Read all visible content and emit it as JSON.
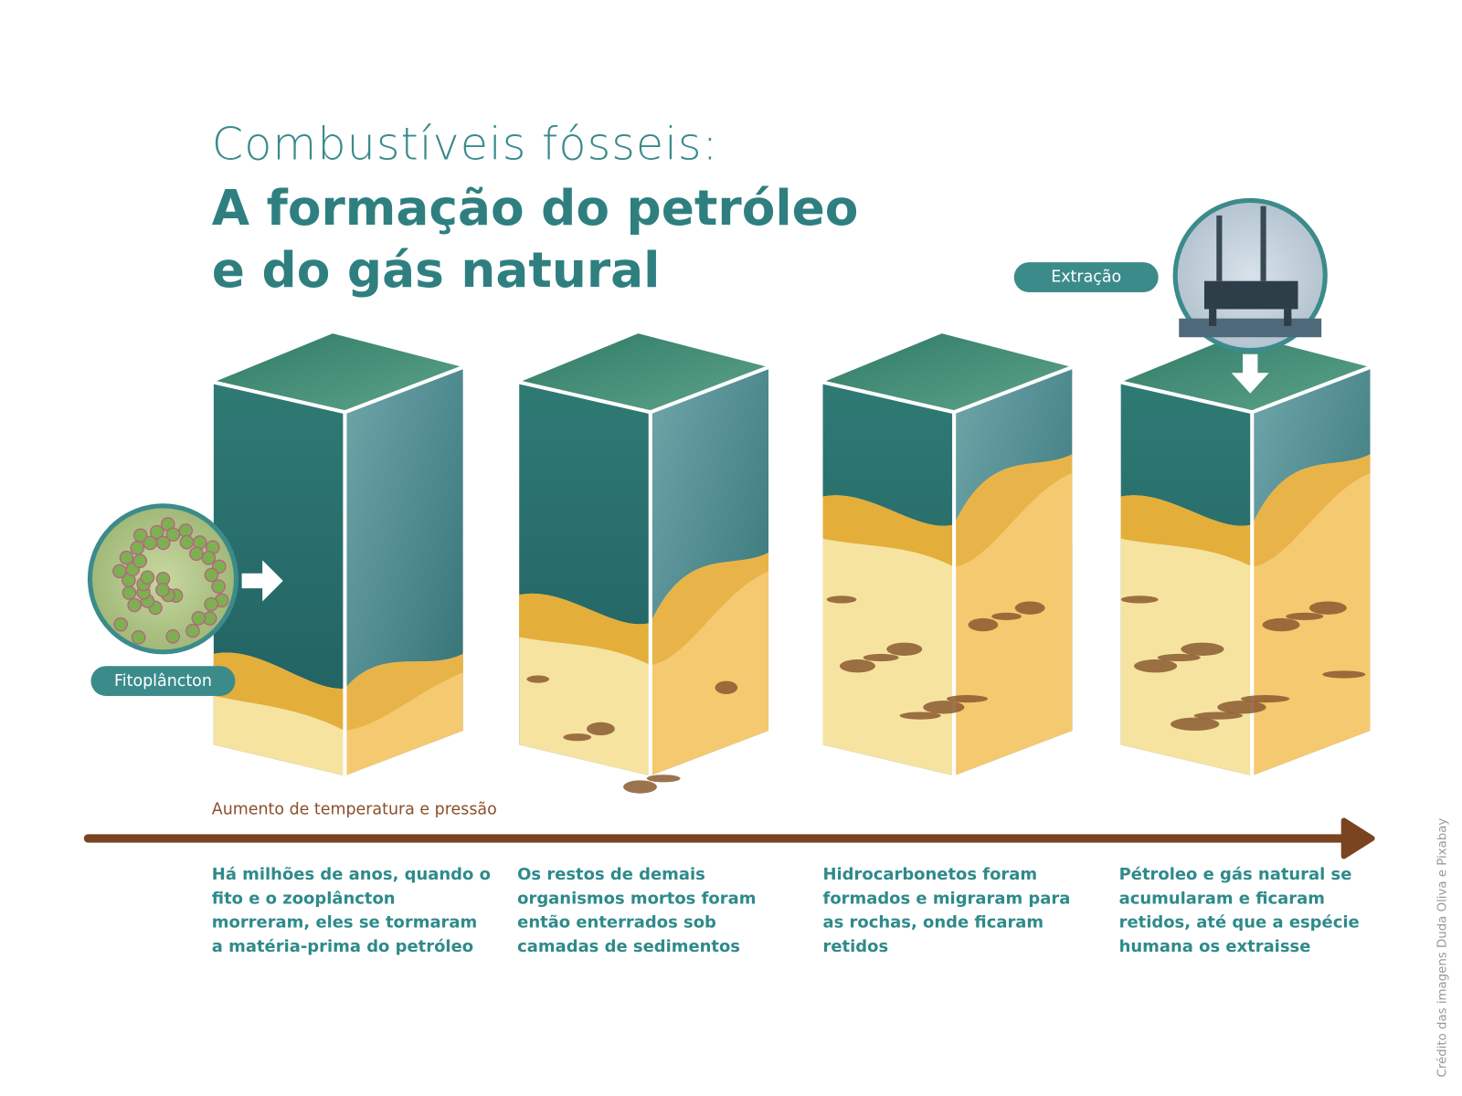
{
  "title": {
    "line1": "Combustíveis fósseis:",
    "line2": "A formação do petróleo",
    "line3": "e do gás natural"
  },
  "labels": {
    "phytoplankton": "Fitoplâncton",
    "extraction": "Extração",
    "axis": "Aumento de temperatura e pressão"
  },
  "captions": [
    "Há milhões de anos, quando o fito e o zooplâncton morreram, eles se tormaram a matéria-prima do petróleo",
    "Os restos de demais organismos mortos foram então enterrados sob camadas de sedimentos",
    "Hidrocarbonetos foram formados e migraram para as rochas, onde ficaram retidos",
    "Pétroleo e gás natural se acumularam e ficaram retidos, até que a espécie humana os extraisse"
  ],
  "credit": "Crédito das imagens Duda Oliva e Pixabay",
  "colors": {
    "teal": "#3c8b8b",
    "water": "#2e6f6e",
    "sand": "#f7e3a0",
    "sandTop": "#e3ae3a",
    "oil": "#8a5a30",
    "arrow": "#7a4420"
  }
}
